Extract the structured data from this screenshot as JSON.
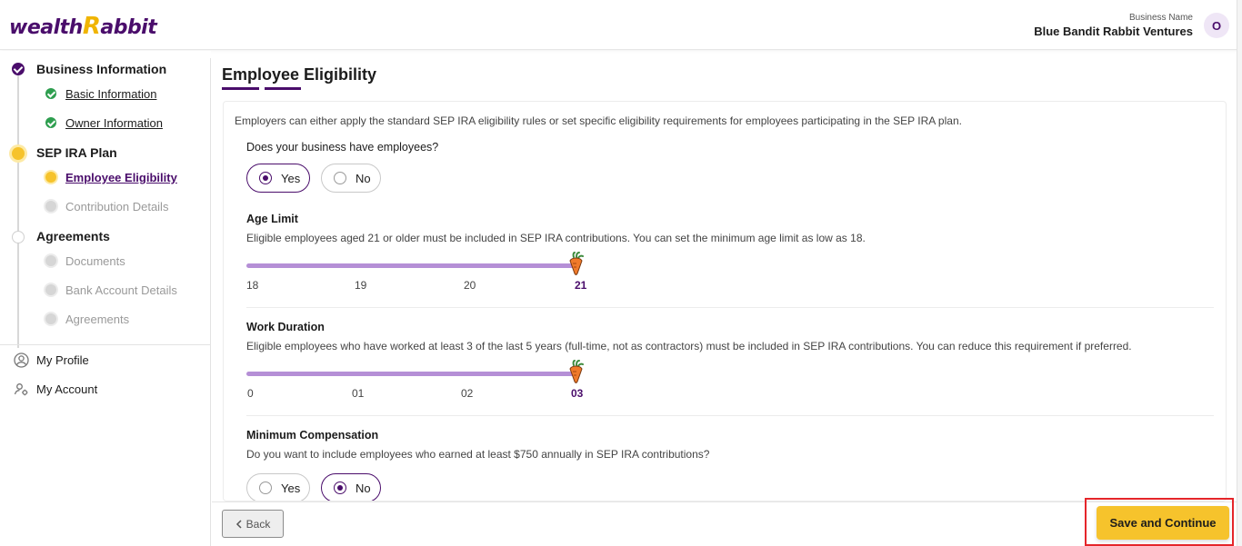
{
  "header": {
    "logo_main": "wealth",
    "logo_r": "R",
    "logo_tail": "abbit",
    "business_label": "Business Name",
    "business_name": "Blue Bandit Rabbit Ventures",
    "avatar_initial": "O"
  },
  "sidebar": {
    "sections": [
      {
        "title": "Business Information",
        "status": "done",
        "items": [
          {
            "label": "Basic Information",
            "status": "done"
          },
          {
            "label": "Owner Information",
            "status": "done"
          }
        ]
      },
      {
        "title": "SEP IRA Plan",
        "status": "active",
        "items": [
          {
            "label": "Employee Eligibility",
            "status": "active"
          },
          {
            "label": "Contribution Details",
            "status": "todo"
          }
        ]
      },
      {
        "title": "Agreements",
        "status": "todo",
        "items": [
          {
            "label": "Documents",
            "status": "todo"
          },
          {
            "label": "Bank Account Details",
            "status": "todo"
          },
          {
            "label": "Agreements",
            "status": "todo"
          }
        ]
      }
    ],
    "links": [
      {
        "label": "My Profile",
        "icon": "user-circle-icon"
      },
      {
        "label": "My Account",
        "icon": "user-gear-icon"
      }
    ]
  },
  "main": {
    "title": "Employee Eligibility",
    "intro": "Employers can either apply the standard SEP IRA eligibility rules or set specific eligibility requirements for employees participating in the SEP IRA plan.",
    "employees_question": {
      "label": "Does your business have employees?",
      "options": [
        "Yes",
        "No"
      ],
      "selected": "Yes"
    },
    "age_limit": {
      "label": "Age Limit",
      "description": "Eligible employees aged 21 or older must be included in SEP IRA contributions. You can set the minimum age limit as low as 18.",
      "ticks": [
        "18",
        "19",
        "20",
        "21"
      ],
      "value": "21"
    },
    "work_duration": {
      "label": "Work Duration",
      "description": "Eligible employees who have worked at least 3 of the last 5 years (full-time, not as contractors) must be included in SEP IRA contributions. You can reduce this requirement if preferred.",
      "ticks": [
        "0",
        "01",
        "02",
        "03"
      ],
      "value": "03"
    },
    "min_compensation": {
      "label": "Minimum Compensation",
      "description": "Do you want to include employees who earned at least $750 annually in SEP IRA contributions?",
      "options": [
        "Yes",
        "No"
      ],
      "selected": "No"
    }
  },
  "footer": {
    "back_label": "Back",
    "save_label": "Save and Continue"
  },
  "colors": {
    "brand_purple": "#4a0d6b",
    "accent_yellow": "#f6c32c",
    "slider": "#b58fd6",
    "success_green": "#2e9e4f",
    "highlight_red": "#e5252a"
  }
}
